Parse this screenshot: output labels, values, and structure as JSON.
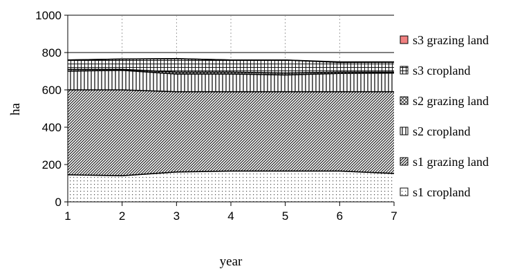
{
  "chart_data": {
    "type": "area",
    "stacked": true,
    "x": [
      1,
      2,
      3,
      4,
      5,
      6,
      7
    ],
    "xlabel": "year",
    "ylabel": "ha",
    "xlim": [
      1,
      7
    ],
    "ylim": [
      0,
      1000
    ],
    "y_ticks": [
      0,
      200,
      400,
      600,
      800,
      1000
    ],
    "grid": "horizontal at 800 and 1000; dashed vertical at each year",
    "legend_position": "right",
    "series": [
      {
        "name": "s1 cropland",
        "values": [
          145,
          140,
          160,
          165,
          165,
          165,
          152
        ],
        "pattern": "dots",
        "color": "#ffffff"
      },
      {
        "name": "s1 grazing land",
        "values": [
          455,
          460,
          430,
          425,
          425,
          425,
          438
        ],
        "pattern": "diagonal-hatch",
        "color": "#ffffff"
      },
      {
        "name": "s2 cropland",
        "values": [
          100,
          105,
          95,
          95,
          90,
          98,
          100
        ],
        "pattern": "vertical-lines",
        "color": "#ffffff"
      },
      {
        "name": "s2 grazing land",
        "values": [
          10,
          5,
          10,
          10,
          10,
          7,
          5
        ],
        "pattern": "diagonal-cross",
        "color": "#ffffff"
      },
      {
        "name": "s3 cropland",
        "values": [
          50,
          55,
          72,
          65,
          70,
          52,
          53
        ],
        "pattern": "grid",
        "color": "#ffffff"
      },
      {
        "name": "s3 grazing land",
        "values": [
          0,
          0,
          0,
          0,
          0,
          3,
          2
        ],
        "pattern": "solid",
        "color": "#f08080"
      }
    ]
  }
}
